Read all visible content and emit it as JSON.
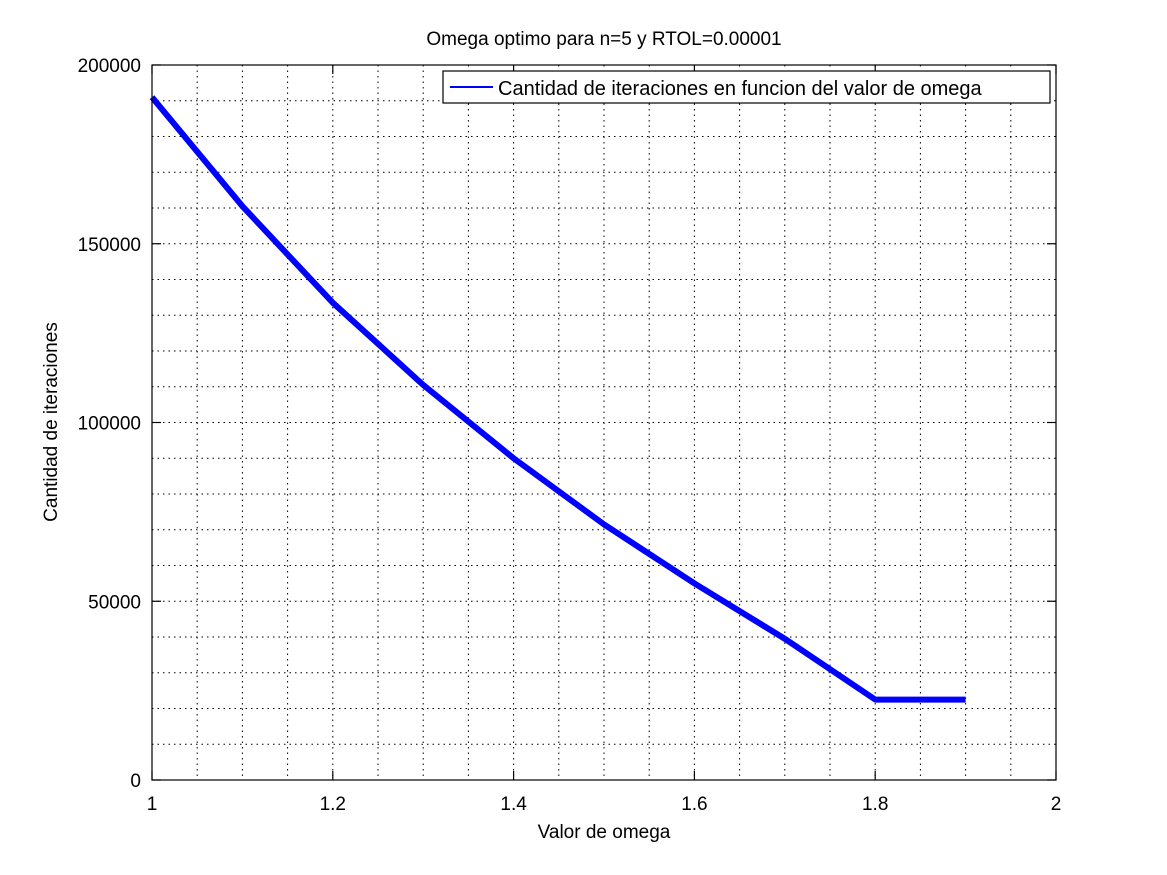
{
  "chart_data": {
    "type": "line",
    "title": "Omega optimo para n=5 y RTOL=0.00001",
    "xlabel": "Valor de omega",
    "ylabel": "Cantidad de iteraciones",
    "xlim": [
      1,
      2
    ],
    "ylim": [
      0,
      200000
    ],
    "xticks": [
      1,
      1.2,
      1.4,
      1.6,
      1.8,
      2
    ],
    "xtick_labels": [
      "1",
      "1.2",
      "1.4",
      "1.6",
      "1.8",
      "2"
    ],
    "yticks": [
      0,
      50000,
      100000,
      150000,
      200000
    ],
    "ytick_labels": [
      "0",
      "50000",
      "100000",
      "150000",
      "200000"
    ],
    "grid": true,
    "legend_position": "top-right",
    "series": [
      {
        "name": "Cantidad de iteraciones en funcion del valor de omega",
        "color": "#0000ff",
        "x": [
          1.0,
          1.1,
          1.2,
          1.3,
          1.4,
          1.5,
          1.6,
          1.7,
          1.8,
          1.9
        ],
        "y": [
          191000,
          160500,
          133500,
          110500,
          90000,
          71500,
          55000,
          39500,
          22500,
          22500
        ]
      }
    ]
  }
}
